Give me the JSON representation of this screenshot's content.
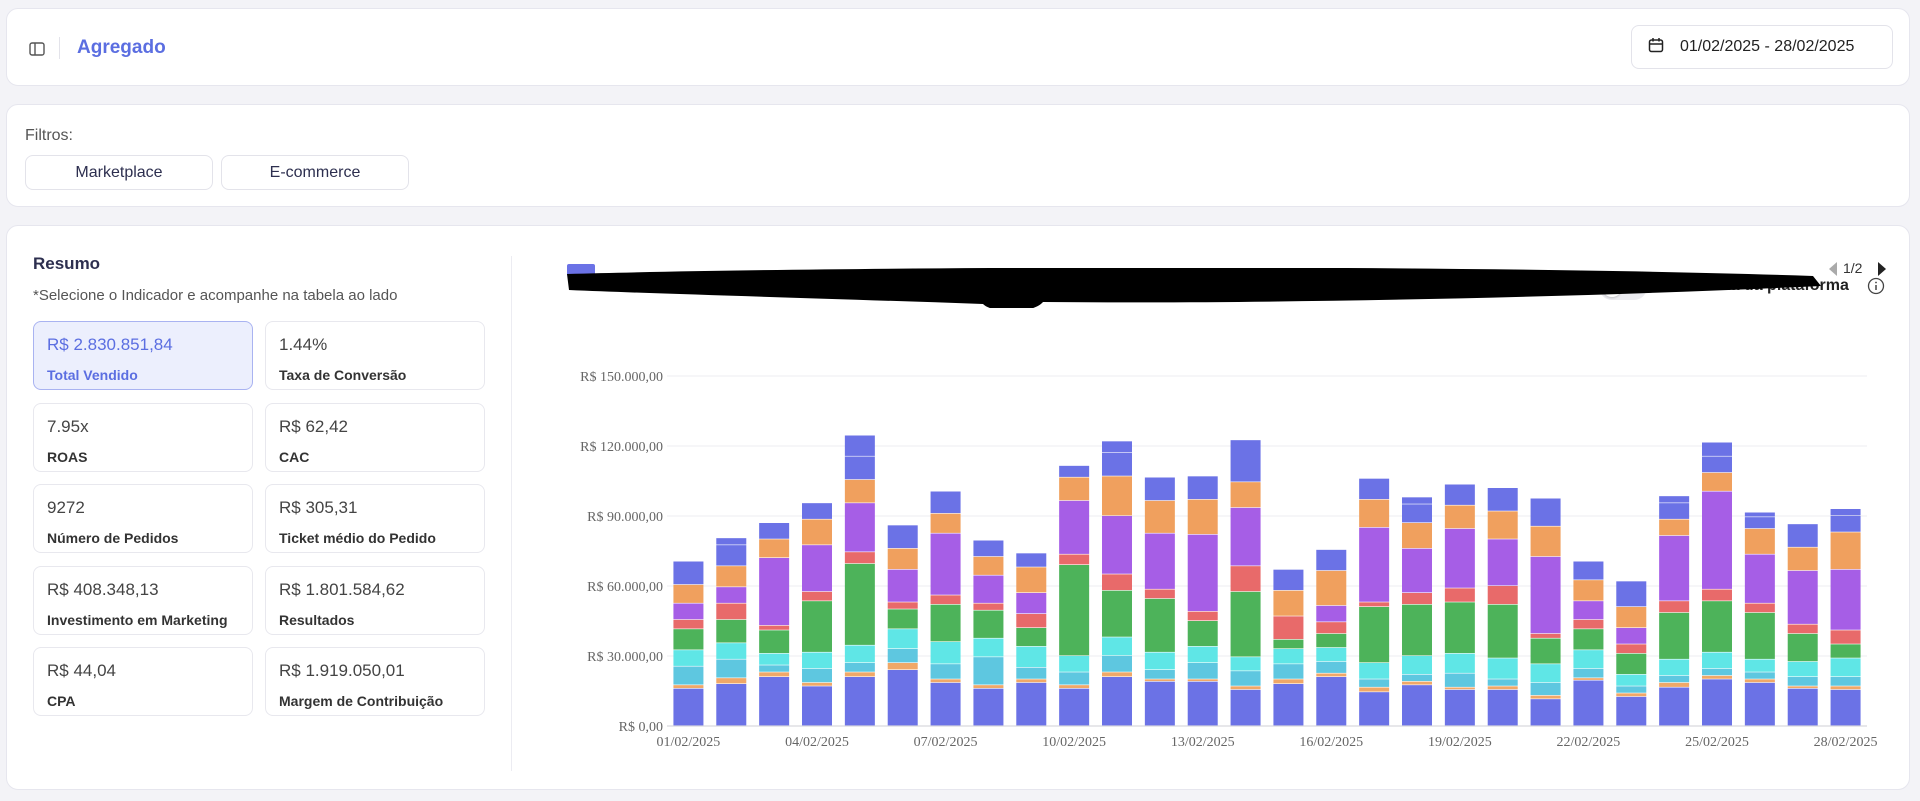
{
  "header": {
    "title": "Agregado",
    "date_range": "01/02/2025 - 28/02/2025",
    "sidebar_icon": "sidebar-toggle-icon",
    "calendar_icon": "calendar-icon"
  },
  "filters": {
    "label": "Filtros:",
    "chips": [
      "Marketplace",
      "E-commerce"
    ]
  },
  "resumo": {
    "title": "Resumo",
    "subtitle": "*Selecione o Indicador e acompanhe na tabela ao lado",
    "kpis": [
      {
        "value": "R$ 2.830.851,84",
        "label": "Total Vendido",
        "active": true
      },
      {
        "value": "1.44%",
        "label": "Taxa de Conversão"
      },
      {
        "value": "7.95x",
        "label": "ROAS"
      },
      {
        "value": "R$ 62,42",
        "label": "CAC"
      },
      {
        "value": "9272",
        "label": "Número de Pedidos"
      },
      {
        "value": "R$ 305,31",
        "label": "Ticket médio do Pedido"
      },
      {
        "value": "R$ 408.348,13",
        "label": "Investimento em Marketing"
      },
      {
        "value": "R$ 1.801.584,62",
        "label": "Resultados"
      },
      {
        "value": "R$ 44,04",
        "label": "CPA"
      },
      {
        "value": "R$ 1.919.050,01",
        "label": "Margem de Contribuição"
      }
    ]
  },
  "chart_controls": {
    "toggle_label": "Incluir taxa da plataforma",
    "toggle_on": false,
    "pager": "1/2"
  },
  "colors": {
    "accent": "#5b6ee1",
    "series": [
      "#6b72e6",
      "#f0a868",
      "#5ec7e0",
      "#5fe6e6",
      "#4db35a",
      "#e86a6a",
      "#a65ee6",
      "#f0a05e",
      "#6b72e6"
    ]
  },
  "chart_data": {
    "type": "bar",
    "stacked": true,
    "y_tick_labels": [
      "R$ 0,00",
      "R$ 30.000,00",
      "R$ 60.000,00",
      "R$ 90.000,00",
      "R$ 120.000,00",
      "R$ 150.000,00"
    ],
    "ylim": [
      0,
      150000
    ],
    "x_tick_labels": [
      "01/02/2025",
      "04/02/2025",
      "07/02/2025",
      "10/02/2025",
      "13/02/2025",
      "16/02/2025",
      "19/02/2025",
      "22/02/2025",
      "25/02/2025",
      "28/02/2025"
    ],
    "categories": [
      "01/02/2025",
      "02/02/2025",
      "03/02/2025",
      "04/02/2025",
      "05/02/2025",
      "06/02/2025",
      "07/02/2025",
      "08/02/2025",
      "09/02/2025",
      "10/02/2025",
      "11/02/2025",
      "12/02/2025",
      "13/02/2025",
      "14/02/2025",
      "15/02/2025",
      "16/02/2025",
      "17/02/2025",
      "18/02/2025",
      "19/02/2025",
      "20/02/2025",
      "21/02/2025",
      "22/02/2025",
      "23/02/2025",
      "24/02/2025",
      "25/02/2025",
      "26/02/2025",
      "27/02/2025",
      "28/02/2025"
    ],
    "series": [
      {
        "values": [
          16000,
          18000,
          21000,
          17000,
          21000,
          24000,
          18500,
          16000,
          18500,
          16000,
          21000,
          19000,
          19000,
          15500,
          18000,
          21000,
          14500,
          17500,
          15500,
          15500,
          11500,
          19500,
          12500,
          16500,
          20000,
          18500,
          16000,
          15500
        ]
      },
      {
        "values": [
          1500,
          2500,
          2000,
          1500,
          2000,
          3000,
          1500,
          1500,
          1500,
          1500,
          2000,
          1000,
          1000,
          1500,
          2000,
          1500,
          2000,
          1500,
          1000,
          1500,
          1500,
          1000,
          1500,
          2000,
          1500,
          1500,
          1000,
          1500
        ]
      },
      {
        "values": [
          8000,
          8000,
          3000,
          6000,
          4000,
          6000,
          6500,
          12000,
          5000,
          5500,
          7000,
          4000,
          7000,
          6500,
          6500,
          5000,
          3500,
          3000,
          6000,
          3000,
          5500,
          4000,
          3000,
          3000,
          3000,
          3000,
          4000,
          4000
        ]
      },
      {
        "values": [
          7000,
          7000,
          5000,
          7000,
          7500,
          8500,
          9500,
          8000,
          9000,
          7000,
          8000,
          7500,
          7000,
          6000,
          6500,
          6000,
          7000,
          8000,
          8500,
          9000,
          8000,
          8000,
          5000,
          7000,
          7000,
          5500,
          6500,
          8000
        ]
      },
      {
        "values": [
          9000,
          10000,
          10000,
          22000,
          35000,
          8500,
          16000,
          12000,
          8000,
          39000,
          20000,
          23000,
          11000,
          28000,
          4000,
          6000,
          24000,
          22000,
          22000,
          23000,
          11000,
          9000,
          9000,
          20000,
          22000,
          20000,
          12000,
          6000
        ]
      },
      {
        "values": [
          4000,
          7000,
          2000,
          4000,
          5000,
          3000,
          4000,
          3000,
          6000,
          4500,
          7000,
          4000,
          4000,
          11000,
          10000,
          5000,
          2000,
          5000,
          6000,
          8000,
          2000,
          4000,
          4000,
          5000,
          5000,
          4000,
          4000,
          6000
        ]
      },
      {
        "values": [
          7000,
          7000,
          29000,
          20000,
          21000,
          14000,
          26500,
          12000,
          9000,
          23000,
          25000,
          24000,
          33000,
          25000,
          0,
          7000,
          32000,
          19000,
          25500,
          20000,
          33000,
          8000,
          7000,
          28000,
          42000,
          21000,
          23000,
          26000
        ]
      },
      {
        "values": [
          8000,
          9000,
          8000,
          11000,
          10000,
          9000,
          8500,
          8000,
          11000,
          10000,
          17000,
          14000,
          15000,
          11000,
          11000,
          15000,
          12000,
          11000,
          10000,
          12000,
          13000,
          9000,
          9000,
          7000,
          8000,
          11000,
          10000,
          16000
        ]
      },
      {
        "values": [
          10000,
          9000,
          7000,
          7000,
          10000,
          10000,
          9500,
          7000,
          6000,
          5000,
          10000,
          10000,
          10000,
          18000,
          9000,
          9000,
          9000,
          8000,
          9000,
          10000,
          12000,
          8000,
          11000,
          7000,
          7000,
          5000,
          10000,
          7000
        ]
      },
      {
        "values": [
          0,
          3000,
          0,
          0,
          9000,
          0,
          0,
          0,
          0,
          0,
          5000,
          0,
          0,
          0,
          0,
          0,
          0,
          3000,
          0,
          0,
          0,
          0,
          0,
          3000,
          6000,
          2000,
          0,
          3000
        ]
      }
    ]
  }
}
